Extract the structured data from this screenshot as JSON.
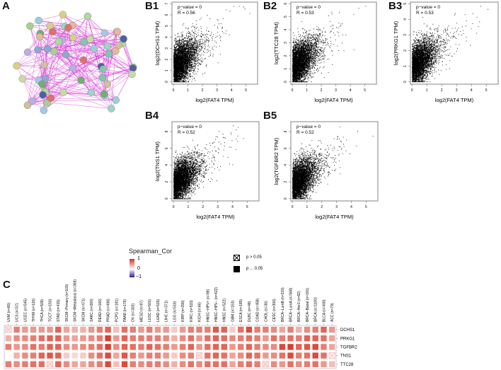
{
  "panels": {
    "A": "A",
    "B1": "B1",
    "B2": "B2",
    "B3": "B3",
    "B4": "B4",
    "B5": "B5",
    "C": "C"
  },
  "network": {
    "edge_color": "#d63ad6",
    "node_colors": [
      "#a8d08d",
      "#c8dca0",
      "#9fd3c7",
      "#a7c7e7",
      "#e6b89c",
      "#d8d08a",
      "#7fc8b0",
      "#b8b0e0",
      "#8fa8d0",
      "#e07070",
      "#b0d8a0",
      "#9ad0d8",
      "#d0c0a0",
      "#70b070",
      "#5060a0"
    ]
  },
  "chart_data": [
    {
      "type": "scatter",
      "panel": "B1",
      "xlabel": "log2(FAT4 TPM)",
      "ylabel": "log2(DCHS1 TPM)",
      "xlim": [
        0,
        5.8
      ],
      "ylim": [
        0,
        7
      ],
      "xticks": [
        0,
        1,
        2,
        3,
        4,
        5
      ],
      "yticks": [
        0,
        1,
        2,
        3,
        4,
        5,
        6,
        7
      ],
      "annotation": {
        "p": "p−value = 0",
        "r": "R = 0.56"
      },
      "R": 0.56,
      "p_value": 0
    },
    {
      "type": "scatter",
      "panel": "B2",
      "xlabel": "log2(FAT4 TPM)",
      "ylabel": "log2(TTC28 TPM)",
      "xlim": [
        0,
        5.8
      ],
      "ylim": [
        0,
        6
      ],
      "xticks": [
        0,
        1,
        2,
        3,
        4,
        5
      ],
      "yticks": [
        0,
        1,
        2,
        3,
        4,
        5,
        6
      ],
      "annotation": {
        "p": "p−value = 0",
        "r": "R = 0.53"
      },
      "R": 0.53,
      "p_value": 0
    },
    {
      "type": "scatter",
      "panel": "B3",
      "xlabel": "log2(FAT4 TPM)",
      "ylabel": "log2(PRKG1 TPM)",
      "xlim": [
        0,
        5.8
      ],
      "ylim": [
        0,
        5
      ],
      "xticks": [
        0,
        1,
        2,
        3,
        4,
        5
      ],
      "yticks": [
        0,
        1,
        2,
        3,
        4,
        5
      ],
      "annotation": {
        "p": "p−value = 0",
        "r": "R = 0.53"
      },
      "R": 0.53,
      "p_value": 0
    },
    {
      "type": "scatter",
      "panel": "B4",
      "xlabel": "log2(FAT4 TPM)",
      "ylabel": "log2(TNS1 TPM)",
      "xlim": [
        0,
        5.8
      ],
      "ylim": [
        0,
        9
      ],
      "xticks": [
        0,
        1,
        2,
        3,
        4,
        5
      ],
      "yticks": [
        0,
        2,
        4,
        6,
        8
      ],
      "annotation": {
        "p": "p−value = 0",
        "r": "R = 0.52"
      },
      "R": 0.52,
      "p_value": 0
    },
    {
      "type": "scatter",
      "panel": "B5",
      "xlabel": "log2(FAT4 TPM)",
      "ylabel": "log2(TGFBR2 TPM)",
      "xlim": [
        0,
        5.8
      ],
      "ylim": [
        0,
        9
      ],
      "xticks": [
        0,
        1,
        2,
        3,
        4,
        5
      ],
      "yticks": [
        0,
        2,
        4,
        6,
        8
      ],
      "annotation": {
        "p": "p−value = 0",
        "r": "R = 0.52"
      },
      "R": 0.52,
      "p_value": 0
    },
    {
      "type": "heatmap",
      "panel": "C",
      "legend_title": "Spearman_Cor",
      "legend_ticks": [
        "1",
        "0",
        "−1"
      ],
      "colors": {
        "high": "#d7301f",
        "mid": "#ffffff",
        "low": "#2b1a9e"
      },
      "sig_legend": {
        "ns": "p > 0.05",
        "sig": "p ... 0.05"
      },
      "columns": [
        "UVM (n=80)",
        "UCS (n=57)",
        "UCEC (n=545)",
        "THYM (n=120)",
        "THCA (n=509)",
        "TGCT (n=150)",
        "STAD (n=415)",
        "SKCM−Primary (n=103)",
        "SKCM−Metastasis (n=368)",
        "SKCM (n=471)",
        "SARC (n=260)",
        "READ (n=166)",
        "PRAD (n=498)",
        "PCPG (n=181)",
        "PAAD (n=179)",
        "OV (n=303)",
        "MESO (n=87)",
        "LUSC (n=501)",
        "LUAD (n=515)",
        "LIHC (n=371)",
        "LGG (n=516)",
        "KIRP (n=290)",
        "KIRC (n=533)",
        "KICH (n=66)",
        "HNSC−HPV+ (n=98)",
        "HNSC−HPV− (n=422)",
        "HNSC (n=522)",
        "GBM (n=153)",
        "ESCA (n=185)",
        "DLBC (n=48)",
        "COAD (n=458)",
        "CHOL (n=36)",
        "CESC (n=306)",
        "BRCA−LumB (n=219)",
        "BRCA−LumA (n=568)",
        "BRCA−Her2 (n=82)",
        "BRCA−Basal (n=191)",
        "BRCA (n=1100)",
        "BLCA (n=408)",
        "ACC (n=79)"
      ],
      "rows": [
        "DCHS1",
        "PRKG1",
        "TGFBR2",
        "TNS1",
        "TTC28"
      ],
      "values": [
        [
          0.1,
          0.5,
          0.4,
          0.4,
          0.4,
          0.4,
          0.6,
          0.35,
          0.3,
          0.3,
          0.4,
          0.5,
          0.6,
          0.25,
          0.55,
          0.5,
          0.4,
          0.5,
          0.4,
          0.4,
          0.2,
          0.4,
          0.5,
          0.5,
          0.5,
          0.65,
          0.6,
          0.2,
          0.55,
          0.7,
          0.5,
          0.5,
          0.45,
          0.35,
          0.5,
          0.3,
          0.45,
          0.5,
          0.6,
          0.4
        ],
        [
          0.3,
          0.45,
          0.45,
          0.5,
          0.55,
          0.6,
          0.6,
          0.4,
          0.35,
          0.4,
          0.45,
          0.5,
          0.75,
          0.4,
          0.6,
          0.5,
          0.5,
          0.5,
          0.5,
          0.45,
          0.3,
          0.45,
          0.55,
          0.4,
          0.55,
          0.6,
          0.55,
          0.45,
          0.5,
          0.55,
          0.5,
          0.4,
          0.55,
          0.5,
          0.55,
          0.5,
          0.6,
          0.6,
          0.55,
          0.35
        ],
        [
          0.5,
          0.4,
          0.45,
          0.55,
          0.5,
          0.6,
          0.6,
          0.45,
          0.4,
          0.45,
          0.5,
          0.55,
          0.75,
          0.45,
          0.6,
          0.55,
          0.5,
          0.6,
          0.55,
          0.5,
          0.4,
          0.5,
          0.6,
          0.4,
          0.55,
          0.6,
          0.6,
          0.4,
          0.5,
          0.6,
          0.5,
          0.45,
          0.45,
          0.7,
          0.75,
          0.6,
          0.65,
          0.7,
          0.5,
          0.35
        ],
        [
          0.0,
          0.3,
          0.45,
          0.5,
          0.6,
          0.65,
          0.6,
          0.2,
          0.15,
          0.2,
          0.45,
          0.55,
          0.7,
          0.35,
          0.65,
          0.5,
          0.4,
          0.5,
          0.5,
          0.4,
          0.2,
          0.45,
          0.5,
          0.1,
          0.55,
          0.6,
          0.55,
          0.35,
          0.45,
          0.6,
          0.55,
          0.4,
          0.45,
          0.55,
          0.7,
          0.5,
          0.55,
          0.7,
          0.55,
          0.05
        ],
        [
          0.5,
          0.45,
          0.5,
          0.55,
          0.55,
          0.1,
          0.6,
          0.45,
          0.35,
          0.35,
          0.45,
          0.5,
          0.7,
          0.25,
          0.7,
          0.5,
          0.45,
          0.5,
          0.5,
          0.45,
          0.3,
          0.45,
          0.55,
          0.45,
          0.55,
          0.55,
          0.55,
          0.35,
          0.5,
          0.55,
          0.5,
          0.1,
          0.45,
          0.4,
          0.55,
          0.45,
          0.5,
          0.55,
          0.4,
          0.25
        ]
      ],
      "not_significant": [
        [
          0,
          0
        ],
        [
          4,
          5
        ],
        [
          3,
          23
        ],
        [
          4,
          31
        ],
        [
          3,
          39
        ]
      ]
    }
  ]
}
